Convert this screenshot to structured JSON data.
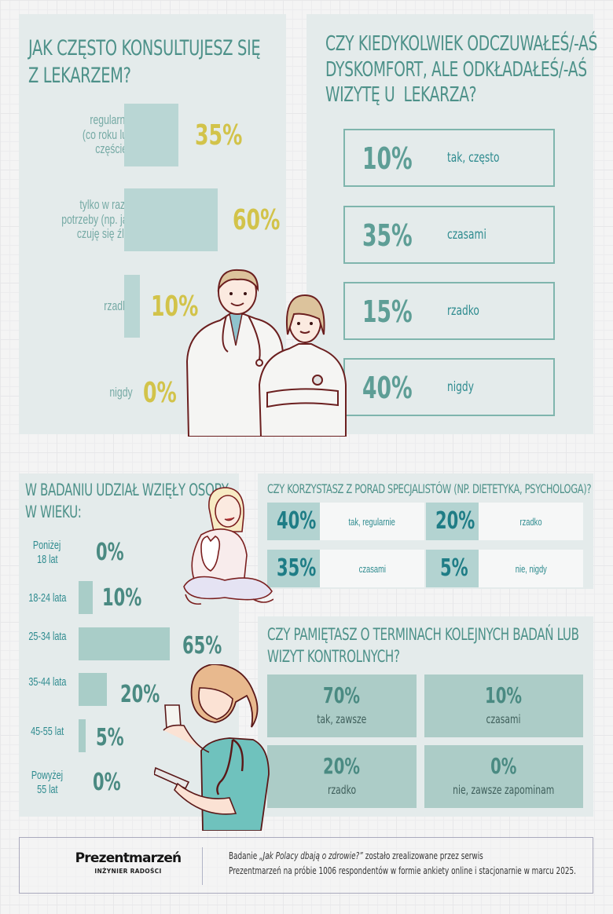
{
  "q1": {
    "title_line1": "JAK CZĘSTO KONSULTUJESZ SIĘ",
    "title_line2": "Z LEKARZEM?",
    "rows": [
      {
        "label_lines": [
          "regularnie",
          "(co roku lub",
          "częściej)"
        ],
        "value": "35%",
        "percent": 35
      },
      {
        "label_lines": [
          "tylko w razie",
          "potrzeby (np. jak",
          "czuję się źle)"
        ],
        "value": "60%",
        "percent": 60
      },
      {
        "label_lines": [
          "rzadko"
        ],
        "value": "10%",
        "percent": 10
      },
      {
        "label_lines": [
          "nigdy"
        ],
        "value": "0%",
        "percent": 0
      }
    ],
    "bar_color": "#b9d6d4",
    "value_color": "#d2c34a"
  },
  "q2": {
    "title_line1": "CZY KIEDYKOLWIEK ODCZUWAŁEŚ/-AŚ",
    "title_line2": "DYSKOMFORT, ALE ODKŁADAŁEŚ/-AŚ",
    "title_line3": "WIZYTĘ U  LEKARZA?",
    "answers": [
      {
        "value": "10%",
        "label": "tak, często"
      },
      {
        "value": "35%",
        "label": "czasami"
      },
      {
        "value": "15%",
        "label": "rzadko"
      },
      {
        "value": "40%",
        "label": "nigdy"
      }
    ]
  },
  "ages": {
    "title_line1": "W BADANIU UDZIAŁ WZIĘŁY OSOBY",
    "title_line2": "W WIEKU:",
    "rows": [
      {
        "label_lines": [
          "Poniżej",
          "18 lat"
        ],
        "value": "0%",
        "percent": 0
      },
      {
        "label_lines": [
          "18-24 lata"
        ],
        "value": "10%",
        "percent": 10
      },
      {
        "label_lines": [
          "25-34 lata"
        ],
        "value": "65%",
        "percent": 65
      },
      {
        "label_lines": [
          "35-44 lata"
        ],
        "value": "20%",
        "percent": 20
      },
      {
        "label_lines": [
          "45-55 lat"
        ],
        "value": "5%",
        "percent": 5
      },
      {
        "label_lines": [
          "Powyżej",
          "55 lat"
        ],
        "value": "0%",
        "percent": 0
      }
    ]
  },
  "specialists": {
    "title": "CZY KORZYSTASZ Z PORAD SPECJALISTÓW (NP. DIETETYKA, PSYCHOLOGA)?",
    "answers": [
      {
        "value": "40%",
        "label": "tak, regularnie"
      },
      {
        "value": "20%",
        "label": "rzadko"
      },
      {
        "value": "35%",
        "label": "czasami"
      },
      {
        "value": "5%",
        "label": "nie, nigdy"
      }
    ]
  },
  "reminders": {
    "title_line1": "CZY PAMIĘTASZ O TERMINACH KOLEJNYCH BADAŃ LUB",
    "title_line2": "WIZYT KONTROLNYCH?",
    "answers": [
      {
        "value": "70%",
        "label": "tak, zawsze"
      },
      {
        "value": "10%",
        "label": "czasami"
      },
      {
        "value": "20%",
        "label": "rzadko"
      },
      {
        "value": "0%",
        "label": "nie, zawsze zapominam"
      }
    ]
  },
  "footer": {
    "logo_brand": "Prezentmarzeń",
    "logo_tagline": "INŻYNIER RADOŚCI",
    "line1_prefix": "Badanie ",
    "line1_italic": "„Jak Polacy dbają o zdrowie?”",
    "line1_suffix": " zostało zrealizowane przez serwis",
    "line2": "Prezentmarzeń na próbie 1006 respondentów w formie ankiety online i stacjonarnie w marcu 2025."
  }
}
